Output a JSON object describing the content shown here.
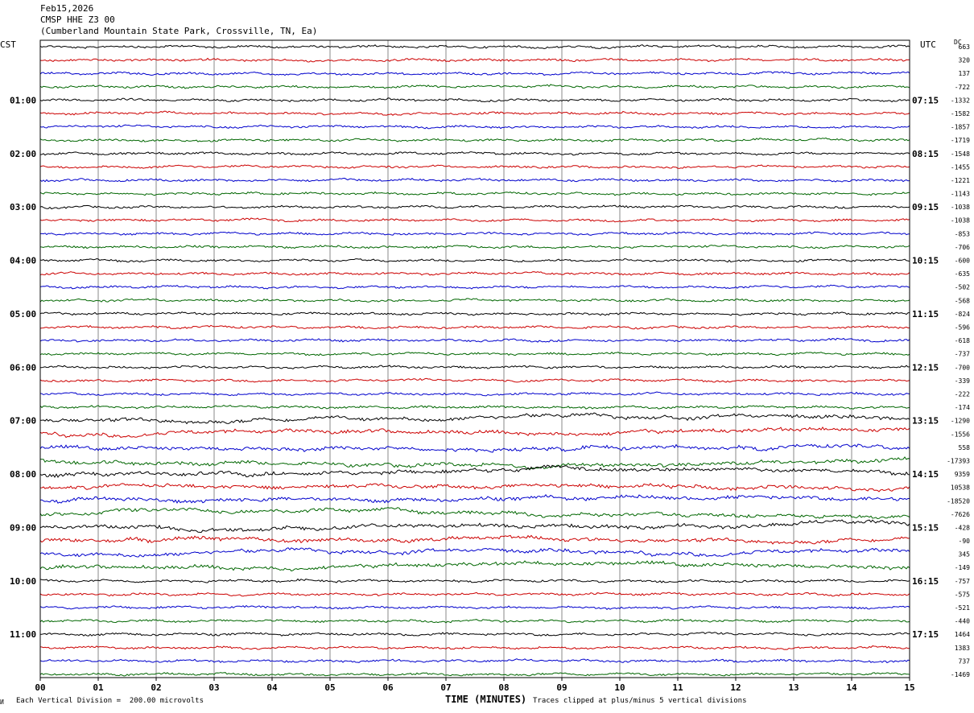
{
  "header": {
    "date": "Feb15,2026",
    "channel": "CMSP HHE Z3 00",
    "station": "(Cumberland Mountain State Park, Crossville, TN, Ea)"
  },
  "left_tz": "CST",
  "right_tz": "UTC",
  "dc_label": "DC",
  "footer": {
    "scale_note": "Each Vertical Division =  200.00 microvolts",
    "clip_note": "Traces clipped at plus/minus 5 vertical divisions",
    "logo_mark": "И"
  },
  "colors": {
    "black": "#000000",
    "red": "#cc0000",
    "blue": "#0000cc",
    "green": "#006600",
    "grid": "#888888"
  },
  "chart_data": {
    "type": "line",
    "title": "CMSP HHE Z3 00",
    "xlabel": "TIME (MINUTES)",
    "ylabel": "",
    "x_ticks": [
      "00",
      "01",
      "02",
      "03",
      "04",
      "05",
      "06",
      "07",
      "08",
      "09",
      "10",
      "11",
      "12",
      "13",
      "14",
      "15"
    ],
    "xlim": [
      0,
      15
    ],
    "lines_per_hour": 4,
    "minutes_per_line": 15,
    "left_hour_labels": [
      "01:00",
      "02:00",
      "03:00",
      "04:00",
      "05:00",
      "06:00",
      "07:00",
      "08:00",
      "09:00",
      "10:00",
      "11:00"
    ],
    "right_hour_labels": [
      "07:15",
      "08:15",
      "09:15",
      "10:15",
      "11:15",
      "12:15",
      "13:15",
      "14:15",
      "15:15",
      "16:15",
      "17:15"
    ],
    "trace_colors": [
      "black",
      "red",
      "blue",
      "green"
    ],
    "dc_offsets": [
      "663",
      "320",
      "137",
      "-722",
      "-1332",
      "-1582",
      "-1857",
      "-1719",
      "-1548",
      "-1455",
      "-1221",
      "-1143",
      "-1038",
      "-1038",
      "-853",
      "-706",
      "-600",
      "-635",
      "-502",
      "-568",
      "-824",
      "-596",
      "-618",
      "-737",
      "-700",
      "-339",
      "-222",
      "-174",
      "-1290",
      "-1556",
      "558",
      "-17393",
      "9359",
      "10538",
      "-18520",
      "-7626",
      "-428",
      "-90",
      "345",
      "-149",
      "-757",
      "-575",
      "-521",
      "-440",
      "1464",
      "1383",
      "737",
      "-1469"
    ],
    "y_scale_microvolts_per_division": 200.0,
    "clip_divisions": 5
  }
}
